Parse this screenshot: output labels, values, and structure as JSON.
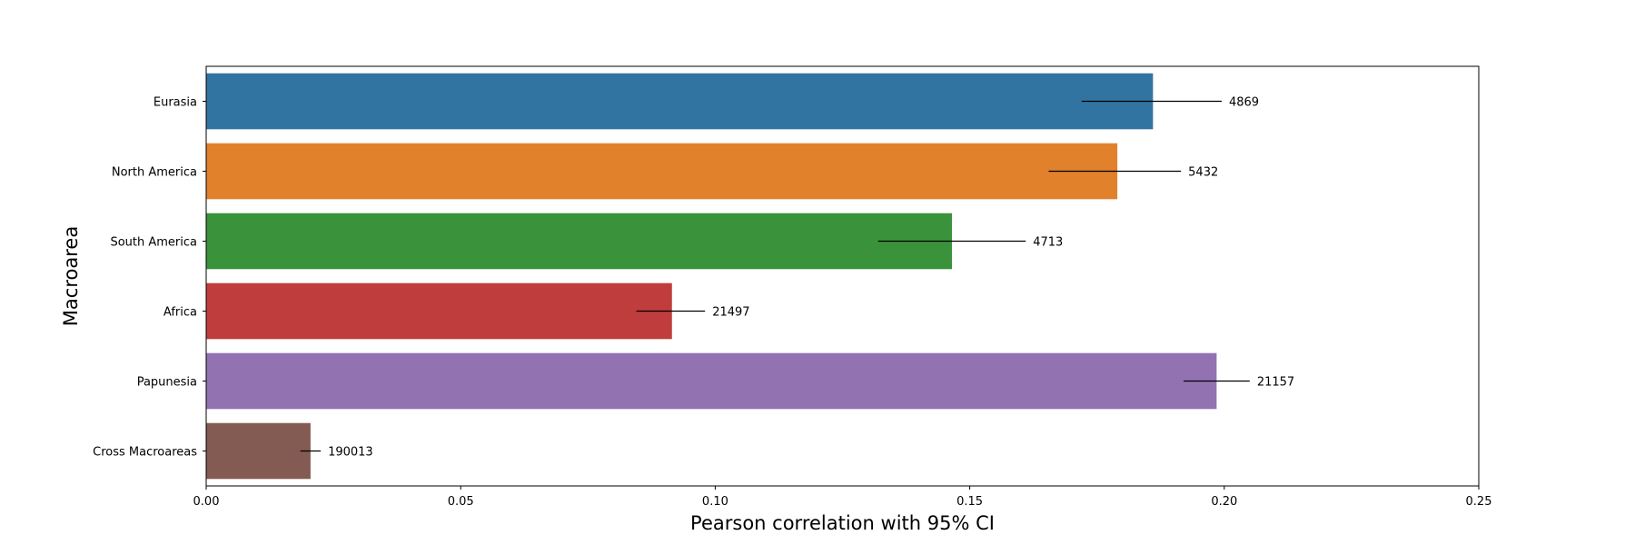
{
  "chart_data": {
    "type": "bar",
    "orientation": "horizontal",
    "title": "",
    "xlabel": "Pearson correlation with 95% CI",
    "ylabel": "Macroarea",
    "xlim": [
      0,
      0.25
    ],
    "xticks": [
      "0.00",
      "0.05",
      "0.10",
      "0.15",
      "0.20",
      "0.25"
    ],
    "grid": false,
    "categories": [
      "Eurasia",
      "North America",
      "South America",
      "Africa",
      "Papunesia",
      "Cross Macroareas"
    ],
    "values": [
      0.186,
      0.179,
      0.1465,
      0.0915,
      0.1985,
      0.0205
    ],
    "ci": [
      [
        0.172,
        0.1995
      ],
      [
        0.1655,
        0.1915
      ],
      [
        0.132,
        0.161
      ],
      [
        0.0845,
        0.098
      ],
      [
        0.192,
        0.205
      ],
      [
        0.0185,
        0.0225
      ]
    ],
    "bar_labels": [
      "4869",
      "5432",
      "4713",
      "21497",
      "21157",
      "190013"
    ],
    "colors": [
      "#3274a1",
      "#e1812c",
      "#3a923a",
      "#c03d3e",
      "#9372b2",
      "#845b53"
    ]
  }
}
